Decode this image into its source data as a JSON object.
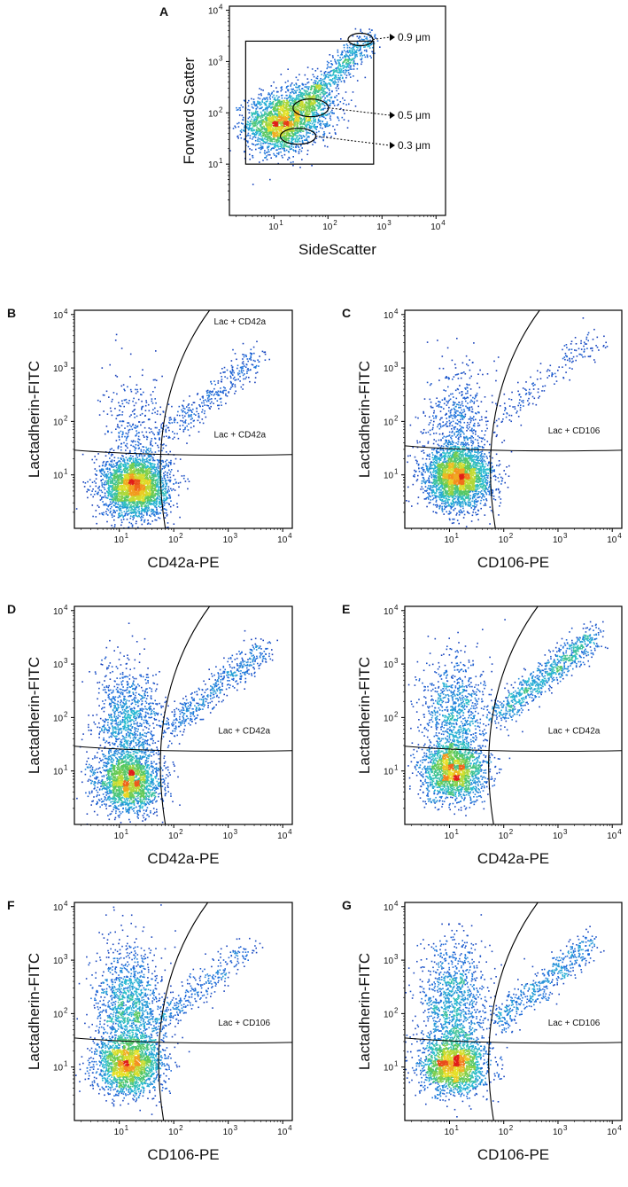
{
  "figure": {
    "ticks": [
      "10",
      "1",
      "10",
      "2",
      "10",
      "3",
      "10",
      "4"
    ],
    "tick_exponents": [
      "1",
      "2",
      "3",
      "4"
    ],
    "tick_base": "10"
  },
  "chart_data": [
    {
      "panel": "A",
      "type": "scatter",
      "title": "",
      "xlabel": "SideScatter",
      "ylabel": "Forward Scatter",
      "x_scale": "log",
      "y_scale": "log",
      "xlim": [
        1.5,
        15000
      ],
      "ylim": [
        1,
        12000
      ],
      "x_ticks": [
        10,
        100,
        1000,
        10000
      ],
      "y_ticks": [
        10,
        100,
        1000,
        10000
      ],
      "gate": "rectangle SSC 3-700, FSC 10-2500",
      "size_gates": [
        {
          "label": "0.9 μm",
          "ssc": 400,
          "fsc": 2000
        },
        {
          "label": "0.5 μm",
          "ssc": 45,
          "fsc": 120
        },
        {
          "label": "0.3 μm",
          "ssc": 30,
          "fsc": 35
        }
      ],
      "density_clusters": [
        {
          "x": 12,
          "y": 60,
          "share": 0.55
        },
        {
          "x": 40,
          "y": 120,
          "share": 0.25
        },
        {
          "x": 180,
          "y": 600,
          "share": 0.2
        }
      ]
    },
    {
      "panel": "B",
      "type": "scatter",
      "xlabel": "CD42a-PE",
      "ylabel": "Lactadherin-FITC",
      "x_scale": "log",
      "y_scale": "log",
      "xlim": [
        1.5,
        15000
      ],
      "ylim": [
        1,
        12000
      ],
      "gate_labels": [
        "Lac + CD42a",
        "Lac + CD42a"
      ],
      "horizontal_gate_y": 25,
      "curved_gate_x_at_bottom": 70,
      "density_clusters": [
        {
          "x": 20,
          "y": 6,
          "share": 0.8
        },
        {
          "x": 20,
          "y": 60,
          "share": 0.1
        },
        {
          "x": 500,
          "y": 300,
          "share": 0.1
        }
      ]
    },
    {
      "panel": "C",
      "type": "scatter",
      "xlabel": "CD106-PE",
      "ylabel": "Lactadherin-FITC",
      "x_scale": "log",
      "y_scale": "log",
      "xlim": [
        1.5,
        15000
      ],
      "ylim": [
        1,
        12000
      ],
      "gate_labels": [
        "Lac + CD106"
      ],
      "horizontal_gate_y": 30,
      "curved_gate_x_at_bottom": 70,
      "density_clusters": [
        {
          "x": 15,
          "y": 9,
          "share": 0.78
        },
        {
          "x": 15,
          "y": 80,
          "share": 0.17
        },
        {
          "x": 700,
          "y": 700,
          "share": 0.05
        }
      ]
    },
    {
      "panel": "D",
      "type": "scatter",
      "xlabel": "CD42a-PE",
      "ylabel": "Lactadherin-FITC",
      "x_scale": "log",
      "y_scale": "log",
      "xlim": [
        1.5,
        15000
      ],
      "ylim": [
        1,
        12000
      ],
      "gate_labels": [
        "Lac + CD42a"
      ],
      "horizontal_gate_y": 25,
      "curved_gate_x_at_bottom": 70,
      "density_clusters": [
        {
          "x": 15,
          "y": 6,
          "share": 0.55
        },
        {
          "x": 15,
          "y": 80,
          "share": 0.3
        },
        {
          "x": 600,
          "y": 350,
          "share": 0.15
        }
      ]
    },
    {
      "panel": "E",
      "type": "scatter",
      "xlabel": "CD42a-PE",
      "ylabel": "Lactadherin-FITC",
      "x_scale": "log",
      "y_scale": "log",
      "xlim": [
        1.5,
        15000
      ],
      "ylim": [
        1,
        12000
      ],
      "gate_labels": [
        "Lac + CD42a"
      ],
      "horizontal_gate_y": 25,
      "curved_gate_x_at_bottom": 65,
      "density_clusters": [
        {
          "x": 12,
          "y": 10,
          "share": 0.5
        },
        {
          "x": 12,
          "y": 120,
          "share": 0.25
        },
        {
          "x": 600,
          "y": 600,
          "share": 0.25
        }
      ]
    },
    {
      "panel": "F",
      "type": "scatter",
      "xlabel": "CD106-PE",
      "ylabel": "Lactadherin-FITC",
      "x_scale": "log",
      "y_scale": "log",
      "xlim": [
        1.5,
        15000
      ],
      "ylim": [
        1,
        12000
      ],
      "gate_labels": [
        "Lac + CD106"
      ],
      "horizontal_gate_y": 30,
      "curved_gate_x_at_bottom": 65,
      "density_clusters": [
        {
          "x": 15,
          "y": 11,
          "share": 0.55
        },
        {
          "x": 15,
          "y": 150,
          "share": 0.35
        },
        {
          "x": 300,
          "y": 300,
          "share": 0.1
        }
      ]
    },
    {
      "panel": "G",
      "type": "scatter",
      "xlabel": "CD106-PE",
      "ylabel": "Lactadherin-FITC",
      "x_scale": "log",
      "y_scale": "log",
      "xlim": [
        1.5,
        15000
      ],
      "ylim": [
        1,
        12000
      ],
      "gate_labels": [
        "Lac + CD106"
      ],
      "horizontal_gate_y": 30,
      "curved_gate_x_at_bottom": 65,
      "density_clusters": [
        {
          "x": 12,
          "y": 11,
          "share": 0.55
        },
        {
          "x": 12,
          "y": 150,
          "share": 0.3
        },
        {
          "x": 600,
          "y": 400,
          "share": 0.15
        }
      ]
    }
  ]
}
